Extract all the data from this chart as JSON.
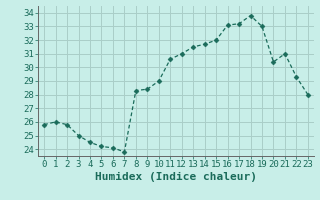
{
  "x": [
    0,
    1,
    2,
    3,
    4,
    5,
    6,
    7,
    8,
    9,
    10,
    11,
    12,
    13,
    14,
    15,
    16,
    17,
    18,
    19,
    20,
    21,
    22,
    23
  ],
  "y": [
    25.8,
    26.0,
    25.8,
    25.0,
    24.5,
    24.2,
    24.1,
    23.8,
    28.3,
    28.4,
    29.0,
    30.6,
    31.0,
    31.5,
    31.7,
    32.0,
    33.1,
    33.2,
    33.8,
    33.0,
    30.4,
    31.0,
    29.3,
    28.0
  ],
  "line_color": "#1a6b5a",
  "marker": "D",
  "marker_size": 2.5,
  "bg_color": "#c8eee8",
  "grid_color": "#aacdc8",
  "xlabel": "Humidex (Indice chaleur)",
  "ylabel": "",
  "title": "",
  "ylim": [
    23.5,
    34.5
  ],
  "xlim": [
    -0.5,
    23.5
  ],
  "yticks": [
    24,
    25,
    26,
    27,
    28,
    29,
    30,
    31,
    32,
    33,
    34
  ],
  "xticks": [
    0,
    1,
    2,
    3,
    4,
    5,
    6,
    7,
    8,
    9,
    10,
    11,
    12,
    13,
    14,
    15,
    16,
    17,
    18,
    19,
    20,
    21,
    22,
    23
  ],
  "tick_label_fontsize": 6.5,
  "xlabel_fontsize": 8,
  "axis_color": "#1a6b5a",
  "spine_color": "#666666"
}
